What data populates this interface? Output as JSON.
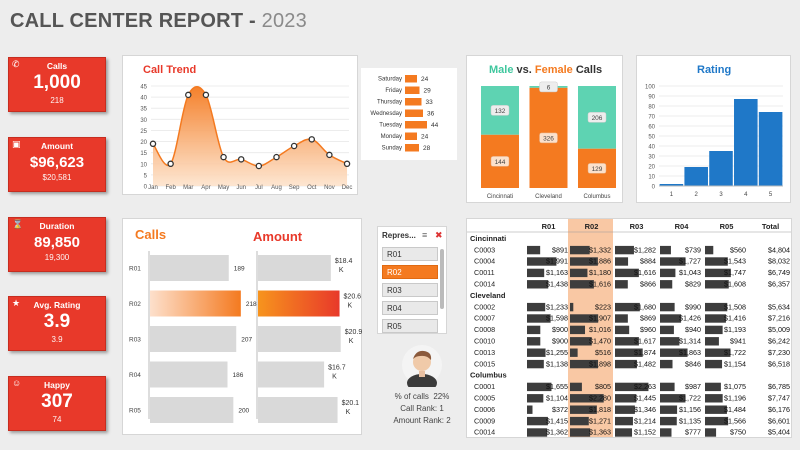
{
  "header": {
    "title": "CALL CENTER REPORT - ",
    "year": "2023"
  },
  "kpis": [
    {
      "label": "Calls",
      "value": "1,000",
      "sub": "218",
      "icon": "phone-icon"
    },
    {
      "label": "Amount",
      "value": "$96,623",
      "sub": "$20,581",
      "icon": "cart-icon"
    },
    {
      "label": "Duration",
      "value": "89,850",
      "sub": "19,300",
      "icon": "hourglass-icon"
    },
    {
      "label": "Avg. Rating",
      "value": "3.9",
      "sub": "3.9",
      "icon": "star-icon"
    },
    {
      "label": "Happy",
      "value": "307",
      "sub": "74",
      "icon": "smiley-icon"
    }
  ],
  "call_trend": {
    "title": "Call Trend",
    "months": [
      "Jan",
      "Feb",
      "Mar",
      "Apr",
      "May",
      "Jun",
      "Jul",
      "Aug",
      "Sep",
      "Oct",
      "Nov",
      "Dec"
    ],
    "values": [
      19,
      10,
      41,
      41,
      13,
      12,
      9,
      13,
      18,
      21,
      14,
      10
    ],
    "y_ticks": [
      "0",
      "5",
      "10",
      "15",
      "20",
      "25",
      "30",
      "35",
      "40",
      "45"
    ],
    "ylim": [
      0,
      45
    ]
  },
  "weekday": {
    "days": [
      "Saturday",
      "Friday",
      "Thursday",
      "Wednesday",
      "Tuesday",
      "Monday",
      "Sunday"
    ],
    "values": [
      24,
      29,
      33,
      36,
      44,
      24,
      28
    ],
    "max": 44
  },
  "gender": {
    "title_a": "Male",
    "title_b": " vs. ",
    "title_c": "Female",
    "title_d": " Calls",
    "cities": [
      "Cincinnati",
      "Cleveland",
      "Columbus"
    ],
    "male": [
      132,
      6,
      206
    ],
    "female": [
      144,
      326,
      129
    ]
  },
  "rating": {
    "title": "Rating",
    "categories": [
      "1",
      "2",
      "3",
      "4",
      "5"
    ],
    "values": [
      2,
      19,
      35,
      87,
      74
    ],
    "y_ticks": [
      "0",
      "10",
      "20",
      "30",
      "40",
      "50",
      "60",
      "70",
      "80",
      "90",
      "100"
    ],
    "ylim": [
      0,
      100
    ]
  },
  "rep_bars": {
    "calls_title": "Calls",
    "amount_title": "Amount",
    "reps": [
      "R01",
      "R02",
      "R03",
      "R04",
      "R05"
    ],
    "calls": [
      189,
      218,
      207,
      186,
      200
    ],
    "amounts": [
      18.4,
      20.6,
      20.9,
      16.7,
      20.1
    ],
    "amount_labels": [
      "$18.4",
      "$20.6",
      "$20.9",
      "$16.7",
      "$20.1"
    ],
    "amount_unit": "K",
    "selected_index": 1
  },
  "slicer": {
    "title": "Repres...",
    "items": [
      "R01",
      "R02",
      "R03",
      "R04",
      "R05"
    ],
    "selected_index": 1
  },
  "agent": {
    "pct_label": "% of calls",
    "pct_value": "22%",
    "call_rank": "Call Rank: 1",
    "amount_rank": "Amount Rank: 2"
  },
  "pivot": {
    "columns": [
      "R01",
      "R02",
      "R03",
      "R04",
      "R05",
      "Total"
    ],
    "groups": [
      {
        "city": "Cincinnati",
        "rows": [
          {
            "id": "C0003",
            "values": [
              "$891",
              "$1,332",
              "$1,282",
              "$739",
              "$560",
              "$4,804"
            ]
          },
          {
            "id": "C0004",
            "values": [
              "$1,991",
              "$1,886",
              "$884",
              "$1,727",
              "$1,543",
              "$8,032"
            ]
          },
          {
            "id": "C0011",
            "values": [
              "$1,163",
              "$1,180",
              "$1,616",
              "$1,043",
              "$1,747",
              "$6,749"
            ]
          },
          {
            "id": "C0014",
            "values": [
              "$1,438",
              "$1,616",
              "$866",
              "$829",
              "$1,608",
              "$6,357"
            ]
          }
        ]
      },
      {
        "city": "Cleveland",
        "rows": [
          {
            "id": "C0002",
            "values": [
              "$1,233",
              "$223",
              "$1,680",
              "$990",
              "$1,508",
              "$5,634"
            ]
          },
          {
            "id": "C0007",
            "values": [
              "$1,598",
              "$1,907",
              "$869",
              "$1,426",
              "$1,416",
              "$7,216"
            ]
          },
          {
            "id": "C0008",
            "values": [
              "$900",
              "$1,016",
              "$960",
              "$940",
              "$1,193",
              "$5,009"
            ]
          },
          {
            "id": "C0010",
            "values": [
              "$900",
              "$1,470",
              "$1,617",
              "$1,314",
              "$941",
              "$6,242"
            ]
          },
          {
            "id": "C0013",
            "values": [
              "$1,255",
              "$516",
              "$1,874",
              "$1,863",
              "$1,722",
              "$7,230"
            ]
          },
          {
            "id": "C0015",
            "values": [
              "$1,138",
              "$1,898",
              "$1,482",
              "$846",
              "$1,154",
              "$6,518"
            ]
          }
        ]
      },
      {
        "city": "Columbus",
        "rows": [
          {
            "id": "C0001",
            "values": [
              "$1,655",
              "$805",
              "$2,263",
              "$987",
              "$1,075",
              "$6,785"
            ]
          },
          {
            "id": "C0005",
            "values": [
              "$1,104",
              "$2,280",
              "$1,445",
              "$1,722",
              "$1,196",
              "$7,747"
            ]
          },
          {
            "id": "C0006",
            "values": [
              "$372",
              "$1,818",
              "$1,346",
              "$1,156",
              "$1,484",
              "$6,176"
            ]
          },
          {
            "id": "C0009",
            "values": [
              "$1,415",
              "$1,271",
              "$1,214",
              "$1,135",
              "$1,566",
              "$6,601"
            ]
          },
          {
            "id": "C0014",
            "values": [
              "$1,362",
              "$1,363",
              "$1,152",
              "$777",
              "$750",
              "$5,404"
            ]
          }
        ]
      }
    ]
  },
  "colors": {
    "kpi_red": "#e8392a",
    "orange": "#f47a20",
    "teal": "#5ed3b2",
    "blue": "#1f78c8",
    "gray_bar": "#d9d9d9"
  }
}
